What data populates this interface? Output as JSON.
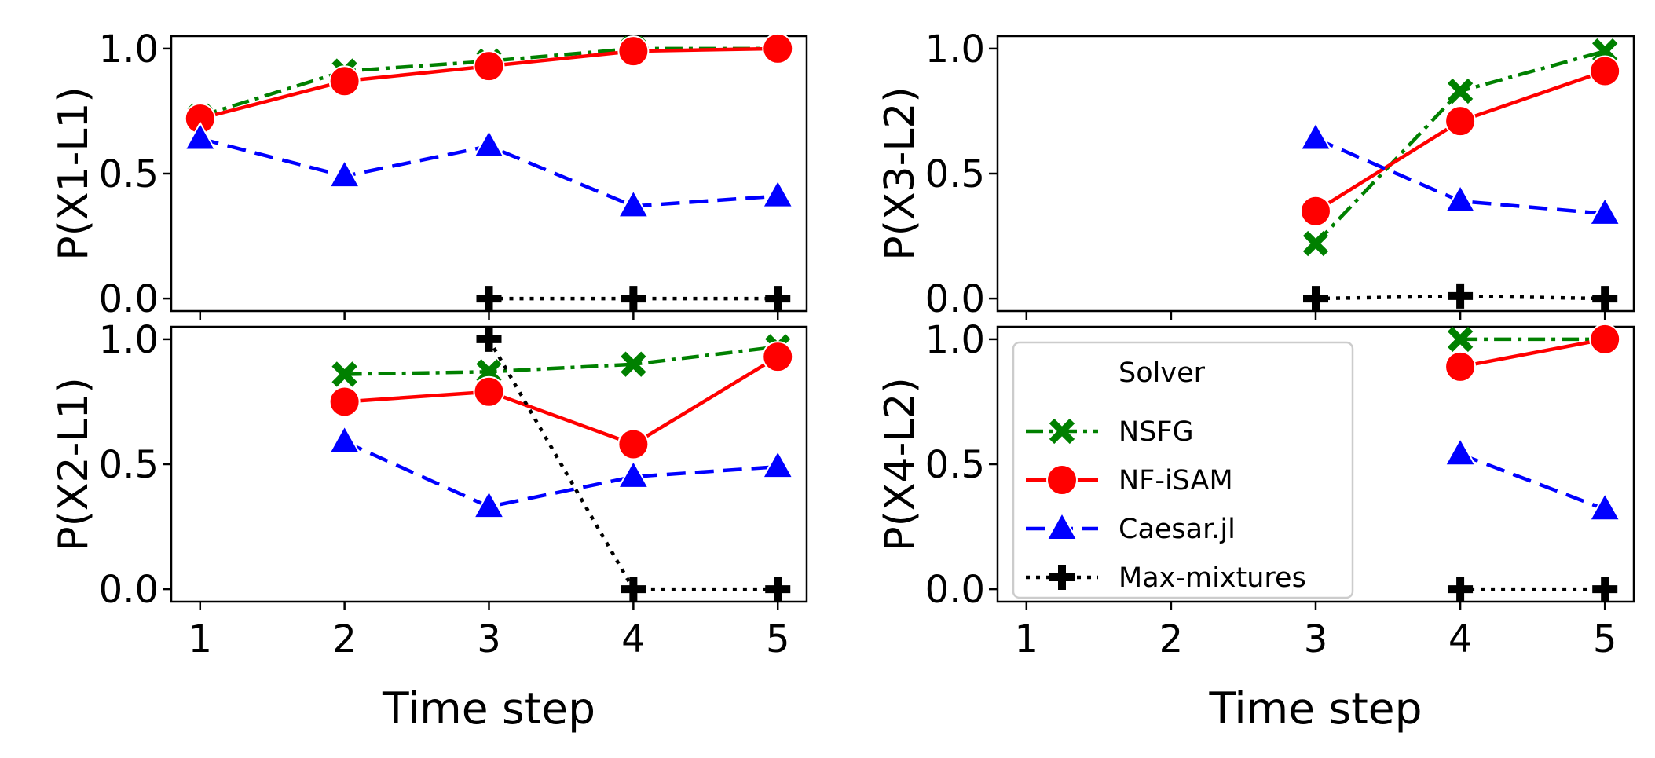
{
  "chart_data": {
    "type": "line",
    "x": [
      1,
      2,
      3,
      4,
      5
    ],
    "xticks": [
      "1",
      "2",
      "3",
      "4",
      "5"
    ],
    "yticks": [
      "0.0",
      "0.5",
      "1.0"
    ],
    "xlim": [
      0.8,
      5.2
    ],
    "ylim": [
      -0.05,
      1.05
    ],
    "xlabel": "Time step",
    "legend": {
      "title": "Solver",
      "position": "upper-left of bottom-right panel",
      "entries": [
        "NSFG",
        "NF-iSAM",
        "Caesar.jl",
        "Max-mixtures"
      ]
    },
    "series_styles": {
      "NSFG": {
        "color": "#008000",
        "dash": "dashdot",
        "marker": "x"
      },
      "NF-iSAM": {
        "color": "#ff0000",
        "dash": "solid",
        "marker": "circle"
      },
      "Caesar.jl": {
        "color": "#0000ff",
        "dash": "dashed",
        "marker": "triangle"
      },
      "Max-mixtures": {
        "color": "#000000",
        "dash": "dotted",
        "marker": "plus"
      }
    },
    "panels": [
      {
        "ylabel": "P(X1-L1)",
        "series": [
          {
            "name": "NSFG",
            "values": [
              0.73,
              0.91,
              0.95,
              1.0,
              1.0
            ]
          },
          {
            "name": "NF-iSAM",
            "values": [
              0.72,
              0.87,
              0.93,
              0.99,
              1.0
            ]
          },
          {
            "name": "Caesar.jl",
            "values": [
              0.64,
              0.49,
              0.61,
              0.37,
              0.41
            ]
          },
          {
            "name": "Max-mixtures",
            "values": [
              null,
              null,
              0.0,
              0.0,
              0.0
            ]
          }
        ]
      },
      {
        "ylabel": "P(X3-L2)",
        "series": [
          {
            "name": "NSFG",
            "values": [
              null,
              null,
              0.22,
              0.83,
              0.99
            ]
          },
          {
            "name": "NF-iSAM",
            "values": [
              null,
              null,
              0.35,
              0.71,
              0.91
            ]
          },
          {
            "name": "Caesar.jl",
            "values": [
              null,
              null,
              0.64,
              0.39,
              0.34
            ]
          },
          {
            "name": "Max-mixtures",
            "values": [
              null,
              null,
              0.0,
              0.01,
              0.0
            ]
          }
        ]
      },
      {
        "ylabel": "P(X2-L1)",
        "series": [
          {
            "name": "NSFG",
            "values": [
              null,
              0.86,
              0.87,
              0.9,
              0.97
            ]
          },
          {
            "name": "NF-iSAM",
            "values": [
              null,
              0.75,
              0.79,
              0.58,
              0.93
            ]
          },
          {
            "name": "Caesar.jl",
            "values": [
              null,
              0.59,
              0.33,
              0.45,
              0.49
            ]
          },
          {
            "name": "Max-mixtures",
            "values": [
              null,
              null,
              1.0,
              0.0,
              0.0
            ]
          }
        ]
      },
      {
        "ylabel": "P(X4-L2)",
        "series": [
          {
            "name": "NSFG",
            "values": [
              null,
              null,
              null,
              1.0,
              1.0
            ]
          },
          {
            "name": "NF-iSAM",
            "values": [
              null,
              null,
              null,
              0.89,
              1.0
            ]
          },
          {
            "name": "Caesar.jl",
            "values": [
              null,
              null,
              null,
              0.54,
              0.32
            ]
          },
          {
            "name": "Max-mixtures",
            "values": [
              null,
              null,
              null,
              0.0,
              0.0
            ]
          }
        ]
      }
    ]
  }
}
